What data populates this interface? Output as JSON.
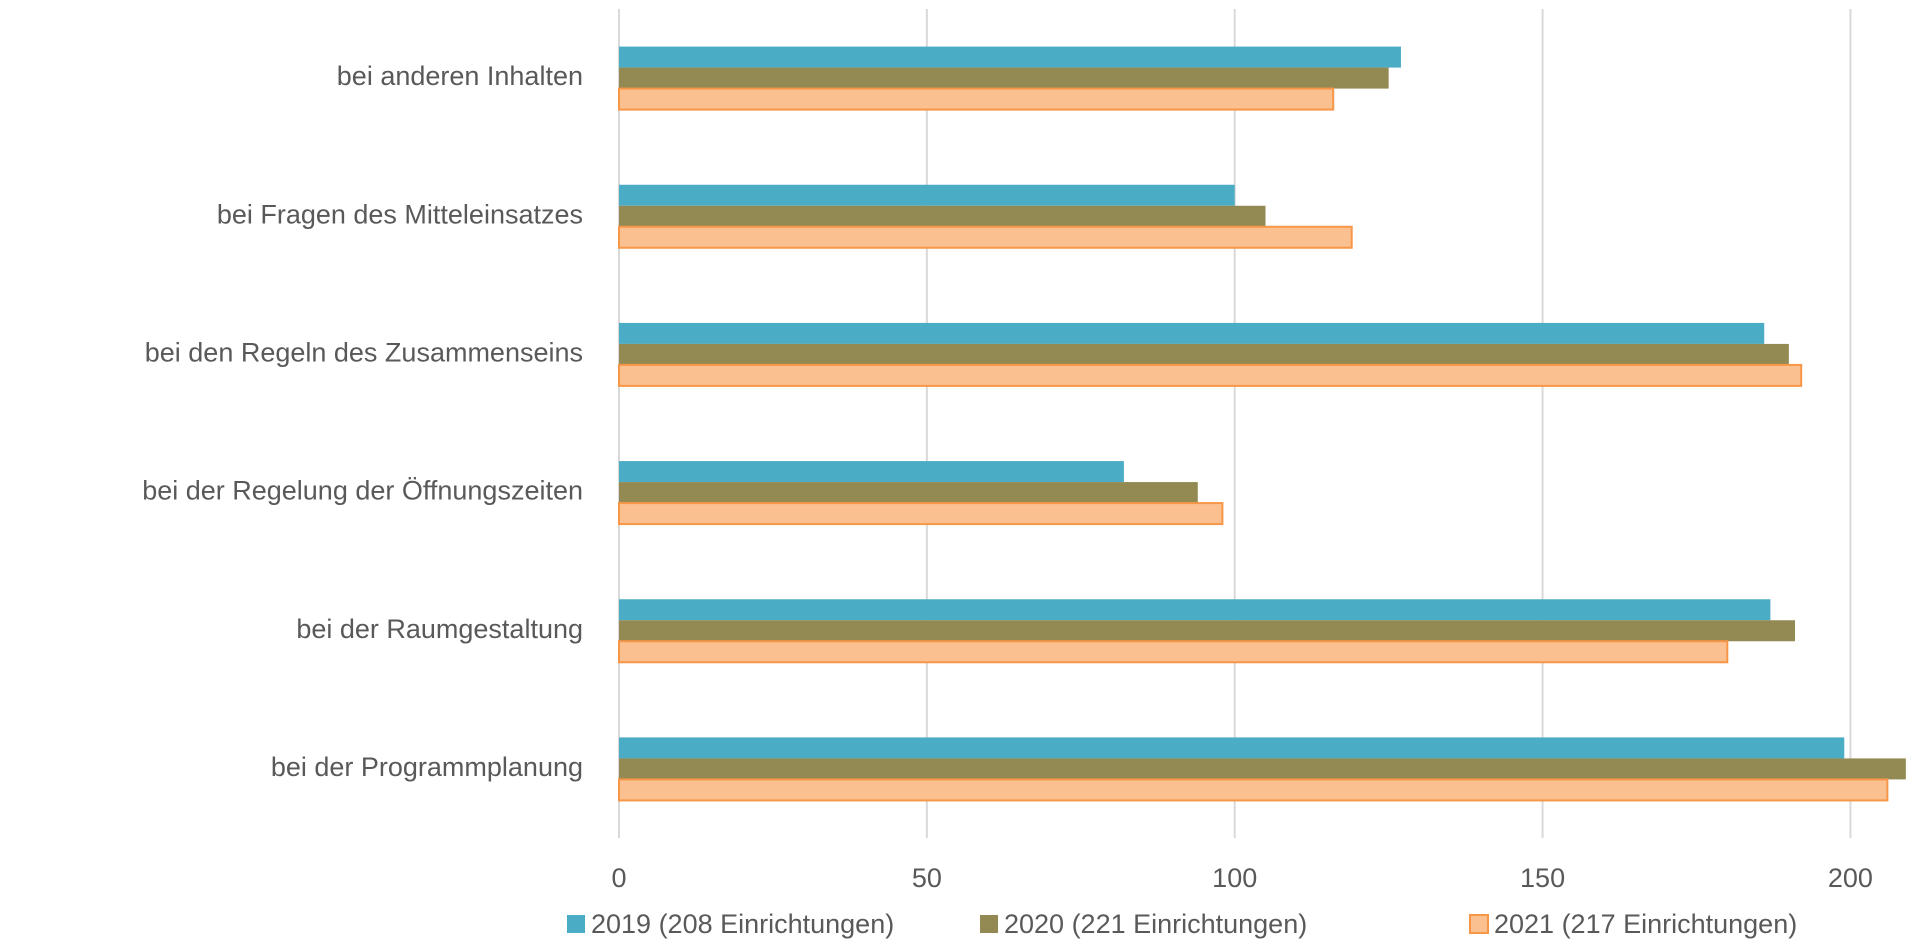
{
  "chart_data": {
    "type": "barh",
    "categories": [
      "bei anderen Inhalten",
      "bei Fragen des Mitteleinsatzes",
      "bei den Regeln des Zusammenseins",
      "bei der Regelung der Öffnungszeiten",
      "bei der Raumgestaltung",
      "bei der Programmplanung"
    ],
    "series": [
      {
        "name": "2019 (208 Einrichtungen)",
        "color": "#4bacc6",
        "values": [
          127,
          100,
          186,
          82,
          187,
          199
        ]
      },
      {
        "name": "2020 (221 Einrichtungen)",
        "color": "#938953",
        "values": [
          125,
          105,
          190,
          94,
          191,
          209
        ]
      },
      {
        "name": "2021 (217 Einrichtungen)",
        "color": "#fac090",
        "stroke": "#f79646",
        "values": [
          116,
          119,
          192,
          98,
          180,
          206
        ]
      }
    ],
    "xlim": [
      0,
      210
    ],
    "xticks": [
      0,
      50,
      100,
      150,
      200
    ],
    "grid": true,
    "legend": "bottom"
  }
}
